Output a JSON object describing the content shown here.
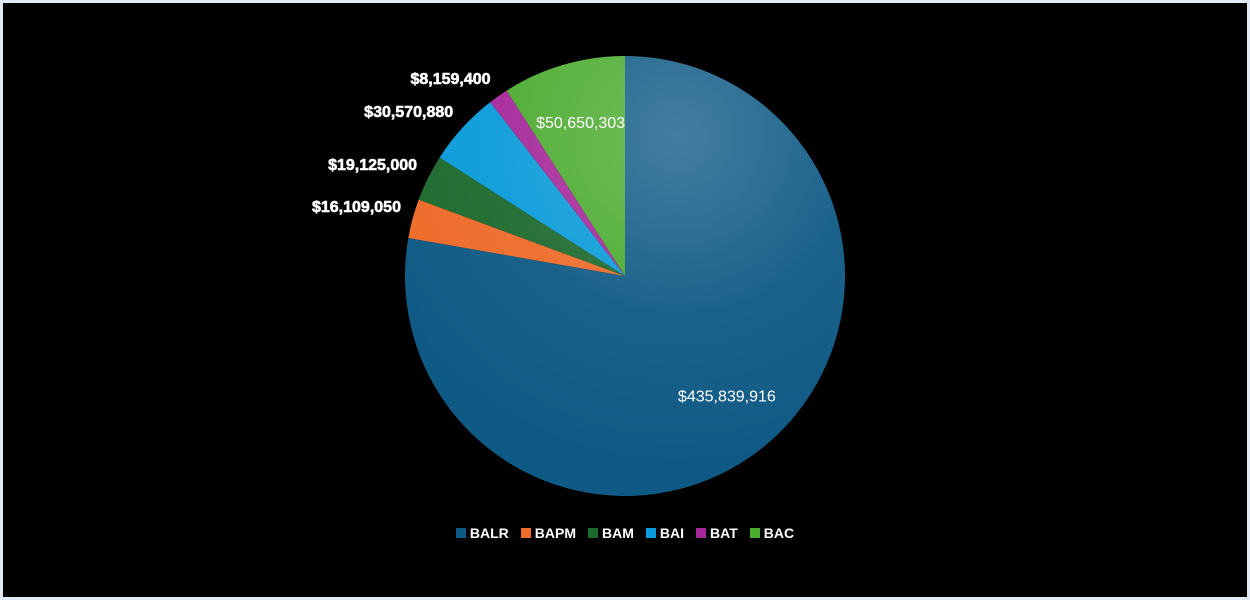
{
  "chart_data": {
    "type": "pie",
    "slices": [
      {
        "name": "BALR",
        "value": 435839916,
        "label": "$435,839,916",
        "color": "#0f5a85"
      },
      {
        "name": "BAPM",
        "value": 16109050,
        "label": "$16,109,050",
        "color": "#ee6b2a"
      },
      {
        "name": "BAM",
        "value": 19125000,
        "label": "$19,125,000",
        "color": "#1d6a2e"
      },
      {
        "name": "BAI",
        "value": 30570880,
        "label": "$30,570,880",
        "color": "#0a9bd9"
      },
      {
        "name": "BAT",
        "value": 8159400,
        "label": "$8,159,400",
        "color": "#a5279a"
      },
      {
        "name": "BAC",
        "value": 50650303,
        "label": "$50,650,303",
        "color": "#4bab2f"
      }
    ],
    "legend_position": "bottom"
  }
}
